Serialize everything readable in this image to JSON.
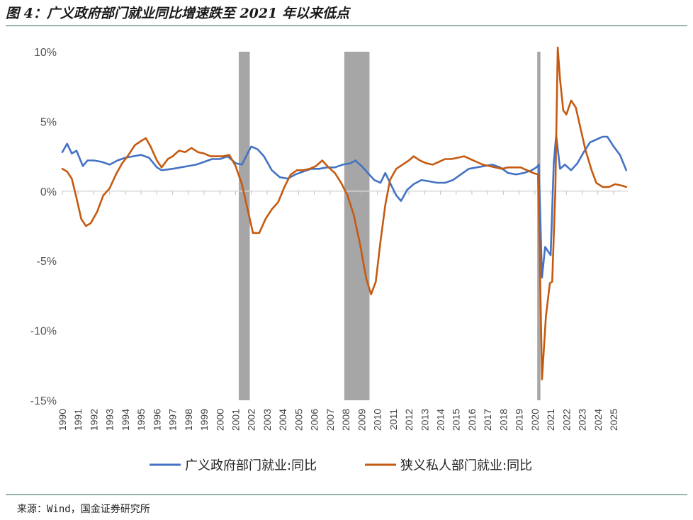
{
  "header": {
    "title": "图 4：广义政府部门就业同比增速跌至 2021 年以来低点"
  },
  "footer": {
    "source": "来源：Wind，国金证券研究所"
  },
  "colors": {
    "blue": "#4472c4",
    "orange": "#c55a11",
    "recession": "#a6a6a6",
    "axis": "#d9d9d9"
  },
  "chart_data": {
    "type": "line",
    "ylim": [
      -15,
      10
    ],
    "yticks": [
      10,
      5,
      0,
      -5,
      -10,
      -15
    ],
    "ytick_labels": [
      "10%",
      "5%",
      "0%",
      "-5%",
      "-10%",
      "-15%"
    ],
    "xlim": [
      1990,
      2025.9
    ],
    "xtick_labels": [
      "1990",
      "1991",
      "1992",
      "1993",
      "1994",
      "1995",
      "1996",
      "1997",
      "1998",
      "1999",
      "2000",
      "2001",
      "2002",
      "2003",
      "2004",
      "2005",
      "2006",
      "2007",
      "2008",
      "2009",
      "2010",
      "2011",
      "2012",
      "2013",
      "2014",
      "2015",
      "2016",
      "2017",
      "2018",
      "2019",
      "2020",
      "2021",
      "2022",
      "2023",
      "2024",
      "2025"
    ],
    "recessions": [
      [
        2001.2,
        2001.9
      ],
      [
        2007.9,
        2009.5
      ],
      [
        2020.15,
        2020.35
      ]
    ],
    "legend": {
      "position": "bottom"
    },
    "series": [
      {
        "name": "广义政府部门就业:同比",
        "color": "#4472c4",
        "points": [
          [
            1990.0,
            2.8
          ],
          [
            1990.3,
            3.4
          ],
          [
            1990.6,
            2.7
          ],
          [
            1990.9,
            2.9
          ],
          [
            1991.3,
            1.8
          ],
          [
            1991.6,
            2.2
          ],
          [
            1992.0,
            2.2
          ],
          [
            1992.5,
            2.1
          ],
          [
            1993.0,
            1.9
          ],
          [
            1993.5,
            2.2
          ],
          [
            1994.0,
            2.4
          ],
          [
            1994.5,
            2.5
          ],
          [
            1995.0,
            2.6
          ],
          [
            1995.5,
            2.4
          ],
          [
            1996.0,
            1.7
          ],
          [
            1996.3,
            1.5
          ],
          [
            1997.0,
            1.6
          ],
          [
            1997.5,
            1.7
          ],
          [
            1998.0,
            1.8
          ],
          [
            1998.5,
            1.9
          ],
          [
            1999.0,
            2.1
          ],
          [
            1999.5,
            2.3
          ],
          [
            2000.0,
            2.3
          ],
          [
            2000.5,
            2.5
          ],
          [
            2001.0,
            2.0
          ],
          [
            2001.4,
            1.9
          ],
          [
            2001.8,
            2.8
          ],
          [
            2002.0,
            3.2
          ],
          [
            2002.4,
            3.0
          ],
          [
            2002.8,
            2.5
          ],
          [
            2003.3,
            1.5
          ],
          [
            2003.8,
            1.0
          ],
          [
            2004.3,
            0.9
          ],
          [
            2004.8,
            1.2
          ],
          [
            2005.3,
            1.4
          ],
          [
            2005.8,
            1.6
          ],
          [
            2006.3,
            1.6
          ],
          [
            2006.8,
            1.7
          ],
          [
            2007.3,
            1.7
          ],
          [
            2007.8,
            1.9
          ],
          [
            2008.3,
            2.0
          ],
          [
            2008.6,
            2.2
          ],
          [
            2009.0,
            1.8
          ],
          [
            2009.4,
            1.3
          ],
          [
            2009.8,
            0.8
          ],
          [
            2010.2,
            0.6
          ],
          [
            2010.5,
            1.3
          ],
          [
            2010.8,
            0.6
          ],
          [
            2011.2,
            -0.3
          ],
          [
            2011.5,
            -0.7
          ],
          [
            2011.9,
            0.1
          ],
          [
            2012.3,
            0.5
          ],
          [
            2012.8,
            0.8
          ],
          [
            2013.3,
            0.7
          ],
          [
            2013.8,
            0.6
          ],
          [
            2014.3,
            0.6
          ],
          [
            2014.8,
            0.8
          ],
          [
            2015.3,
            1.2
          ],
          [
            2015.8,
            1.6
          ],
          [
            2016.3,
            1.7
          ],
          [
            2016.8,
            1.8
          ],
          [
            2017.3,
            1.9
          ],
          [
            2017.8,
            1.7
          ],
          [
            2018.3,
            1.3
          ],
          [
            2018.8,
            1.2
          ],
          [
            2019.3,
            1.3
          ],
          [
            2019.8,
            1.5
          ],
          [
            2020.1,
            1.7
          ],
          [
            2020.25,
            1.9
          ],
          [
            2020.45,
            -6.2
          ],
          [
            2020.65,
            -4.0
          ],
          [
            2021.0,
            -4.6
          ],
          [
            2021.2,
            2.0
          ],
          [
            2021.35,
            4.0
          ],
          [
            2021.6,
            1.6
          ],
          [
            2021.9,
            1.9
          ],
          [
            2022.3,
            1.5
          ],
          [
            2022.7,
            2.0
          ],
          [
            2023.1,
            2.8
          ],
          [
            2023.5,
            3.5
          ],
          [
            2023.9,
            3.7
          ],
          [
            2024.3,
            3.9
          ],
          [
            2024.6,
            3.9
          ],
          [
            2025.0,
            3.2
          ],
          [
            2025.4,
            2.6
          ],
          [
            2025.8,
            1.5
          ]
        ]
      },
      {
        "name": "狭义私人部门就业:同比",
        "color": "#c55a11",
        "points": [
          [
            1990.0,
            1.6
          ],
          [
            1990.3,
            1.4
          ],
          [
            1990.6,
            0.9
          ],
          [
            1990.9,
            -0.5
          ],
          [
            1991.2,
            -2.0
          ],
          [
            1991.5,
            -2.5
          ],
          [
            1991.8,
            -2.3
          ],
          [
            1992.2,
            -1.5
          ],
          [
            1992.6,
            -0.3
          ],
          [
            1993.0,
            0.2
          ],
          [
            1993.4,
            1.2
          ],
          [
            1993.8,
            2.0
          ],
          [
            1994.2,
            2.6
          ],
          [
            1994.6,
            3.3
          ],
          [
            1995.0,
            3.6
          ],
          [
            1995.3,
            3.8
          ],
          [
            1995.6,
            3.2
          ],
          [
            1996.0,
            2.2
          ],
          [
            1996.3,
            1.7
          ],
          [
            1996.7,
            2.3
          ],
          [
            1997.0,
            2.5
          ],
          [
            1997.4,
            2.9
          ],
          [
            1997.8,
            2.8
          ],
          [
            1998.2,
            3.1
          ],
          [
            1998.6,
            2.8
          ],
          [
            1999.0,
            2.7
          ],
          [
            1999.4,
            2.5
          ],
          [
            1999.8,
            2.5
          ],
          [
            2000.2,
            2.5
          ],
          [
            2000.6,
            2.6
          ],
          [
            2001.0,
            1.8
          ],
          [
            2001.4,
            0.5
          ],
          [
            2001.8,
            -1.5
          ],
          [
            2002.1,
            -3.0
          ],
          [
            2002.5,
            -3.0
          ],
          [
            2002.9,
            -2.0
          ],
          [
            2003.3,
            -1.3
          ],
          [
            2003.7,
            -0.8
          ],
          [
            2004.1,
            0.3
          ],
          [
            2004.5,
            1.2
          ],
          [
            2004.9,
            1.5
          ],
          [
            2005.3,
            1.5
          ],
          [
            2005.7,
            1.6
          ],
          [
            2006.1,
            1.8
          ],
          [
            2006.5,
            2.2
          ],
          [
            2006.9,
            1.7
          ],
          [
            2007.3,
            1.3
          ],
          [
            2007.7,
            0.6
          ],
          [
            2008.1,
            -0.3
          ],
          [
            2008.5,
            -1.7
          ],
          [
            2008.9,
            -3.8
          ],
          [
            2009.3,
            -6.3
          ],
          [
            2009.6,
            -7.4
          ],
          [
            2009.9,
            -6.5
          ],
          [
            2010.2,
            -3.6
          ],
          [
            2010.5,
            -1.0
          ],
          [
            2010.8,
            0.8
          ],
          [
            2011.2,
            1.6
          ],
          [
            2011.6,
            1.9
          ],
          [
            2012.0,
            2.2
          ],
          [
            2012.3,
            2.5
          ],
          [
            2012.7,
            2.2
          ],
          [
            2013.1,
            2.0
          ],
          [
            2013.5,
            1.9
          ],
          [
            2013.9,
            2.1
          ],
          [
            2014.3,
            2.3
          ],
          [
            2014.7,
            2.3
          ],
          [
            2015.1,
            2.4
          ],
          [
            2015.5,
            2.5
          ],
          [
            2015.9,
            2.3
          ],
          [
            2016.3,
            2.1
          ],
          [
            2016.7,
            1.9
          ],
          [
            2017.1,
            1.8
          ],
          [
            2017.5,
            1.7
          ],
          [
            2017.9,
            1.6
          ],
          [
            2018.3,
            1.7
          ],
          [
            2018.7,
            1.7
          ],
          [
            2019.1,
            1.7
          ],
          [
            2019.5,
            1.5
          ],
          [
            2019.9,
            1.3
          ],
          [
            2020.2,
            1.2
          ],
          [
            2020.3,
            -4.0
          ],
          [
            2020.45,
            -13.5
          ],
          [
            2020.7,
            -9.0
          ],
          [
            2020.95,
            -6.6
          ],
          [
            2021.1,
            -6.5
          ],
          [
            2021.3,
            0.0
          ],
          [
            2021.45,
            10.3
          ],
          [
            2021.6,
            8.0
          ],
          [
            2021.8,
            5.8
          ],
          [
            2022.0,
            5.5
          ],
          [
            2022.3,
            6.5
          ],
          [
            2022.6,
            6.0
          ],
          [
            2022.9,
            4.5
          ],
          [
            2023.2,
            3.0
          ],
          [
            2023.6,
            1.5
          ],
          [
            2023.9,
            0.6
          ],
          [
            2024.3,
            0.3
          ],
          [
            2024.7,
            0.3
          ],
          [
            2025.1,
            0.5
          ],
          [
            2025.5,
            0.4
          ],
          [
            2025.8,
            0.3
          ]
        ]
      }
    ]
  }
}
